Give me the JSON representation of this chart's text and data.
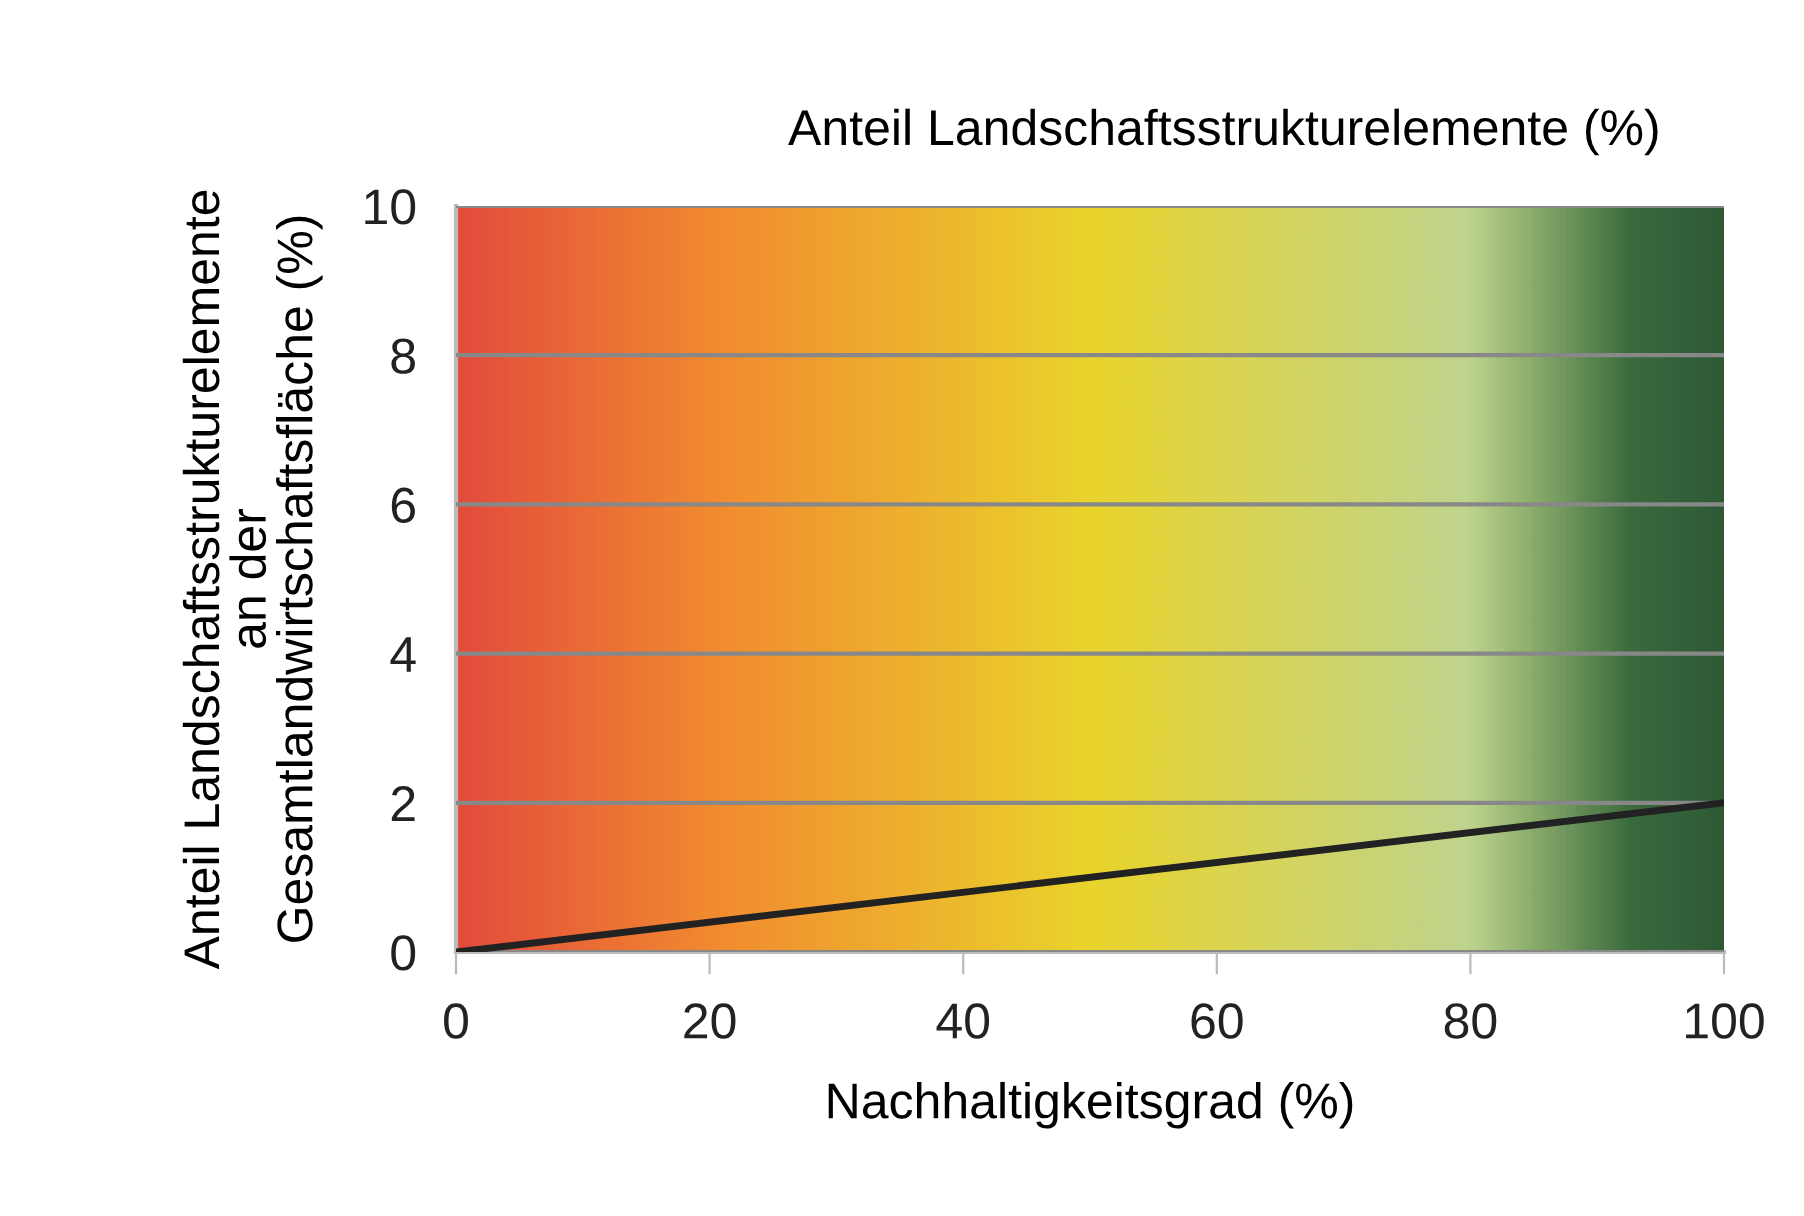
{
  "chart_data": {
    "type": "line",
    "title": "Anteil Landschaftsstrukturelemente (%)",
    "xlabel": "Nachhaltigkeitsgrad (%)",
    "ylabel": "Anteil Landschaftsstrukturelemente\nan der\nGesamtlandwirtschaftsfläche (%)",
    "x": [
      0,
      100
    ],
    "series": [
      {
        "color": "#222222",
        "values": [
          0,
          2
        ]
      }
    ],
    "xlim": [
      0,
      100
    ],
    "ylim": [
      0,
      10
    ],
    "xticks": [
      0,
      20,
      40,
      60,
      80,
      100
    ],
    "yticks": [
      0,
      2,
      4,
      6,
      8,
      10
    ],
    "grid": "y",
    "marker": "none",
    "line_style": "solid"
  }
}
